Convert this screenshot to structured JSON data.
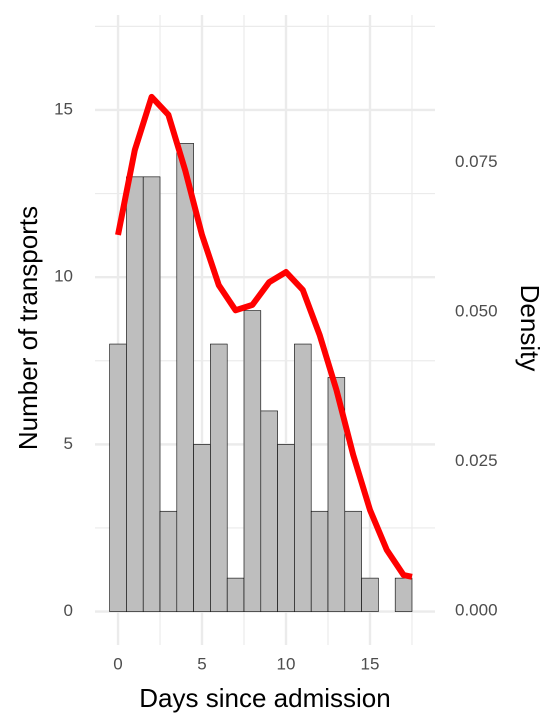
{
  "chart_data": {
    "type": "histogram",
    "x_label": "Days since admission",
    "y_label": "Number of transports",
    "y2_label": "Density",
    "bins": [
      -0.5,
      0.5,
      1.5,
      2.5,
      3.5,
      4.5,
      5.5,
      6.5,
      7.5,
      8.5,
      9.5,
      10.5,
      11.5,
      12.5,
      13.5,
      14.5,
      15.5,
      16.5,
      17.5
    ],
    "counts": [
      8,
      13,
      13,
      3,
      14,
      5,
      8,
      1,
      9,
      6,
      5,
      8,
      3,
      7,
      3,
      1,
      0,
      1
    ],
    "bar_color": "#bebebe",
    "bar_edge_color": "#000000",
    "density": {
      "name": "Density",
      "color": "#ff0000",
      "axis": "y2",
      "x": [
        0,
        1,
        2,
        3,
        4,
        5,
        6,
        7,
        8,
        9,
        10,
        11,
        12,
        13,
        14,
        15,
        16,
        17,
        17.5
      ],
      "values": [
        0.0629,
        0.0771,
        0.086,
        0.083,
        0.0737,
        0.0629,
        0.0545,
        0.0503,
        0.0512,
        0.055,
        0.0567,
        0.0537,
        0.0462,
        0.037,
        0.0261,
        0.0169,
        0.0102,
        0.006,
        0.0057
      ]
    },
    "xlim": [
      -1.37,
      18.87
    ],
    "xticks": [
      0,
      5,
      10,
      15
    ],
    "ylim": [
      -1.0,
      17.84
    ],
    "yticks": [
      0,
      5,
      10,
      15
    ],
    "y2lim": [
      -0.0057,
      0.0997
    ],
    "y2ticks": [
      {
        "value": 0,
        "label": "0.000"
      },
      {
        "value": 0.025,
        "label": "0.025"
      },
      {
        "value": 0.05,
        "label": "0.050"
      },
      {
        "value": 0.075,
        "label": "0.075"
      }
    ],
    "grid": true
  }
}
